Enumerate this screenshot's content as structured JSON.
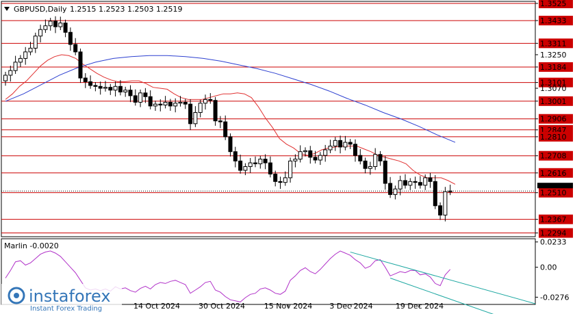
{
  "header": {
    "symbol": "GBPUSD,Daily",
    "ohlc": "1.2515 1.2523 1.2503 1.2519"
  },
  "indicator": {
    "label": "Marlin -0.0020"
  },
  "watermark": {
    "brand": "instaforex",
    "tagline": "Instant Forex Trading"
  },
  "colors": {
    "resistance": "#cc0000",
    "ma_fast": "#e03030",
    "ma_slow": "#2c3fd0",
    "osc": "#b030c8",
    "channel": "#1aa6a0",
    "price_badge": "#000000"
  },
  "chart_data": [
    {
      "type": "candlestick",
      "title": "",
      "y_ticks": [
        "1.3525",
        "1.3433",
        "1.3311",
        "1.3250",
        "1.3184",
        "1.3101",
        "1.3070",
        "1.3001",
        "1.2906",
        "1.2847",
        "1.2810",
        "1.2708",
        "1.2616",
        "1.2510",
        "1.2367",
        "1.2294"
      ],
      "x_ticks": [
        "14 Oct 2024",
        "30 Oct 2024",
        "15 Nov 2024",
        "3 Dec 2024",
        "19 Dec 2024"
      ],
      "ylim": [
        1.2285,
        1.3525
      ],
      "horizontal_levels": [
        1.3525,
        1.3433,
        1.3311,
        1.3184,
        1.3101,
        1.3001,
        1.2906,
        1.2847,
        1.281,
        1.2708,
        1.2616,
        1.251,
        1.2367,
        1.2294
      ],
      "current_price": 1.2519,
      "closes": [
        1.314,
        1.3165,
        1.321,
        1.323,
        1.3265,
        1.3285,
        1.335,
        1.3385,
        1.3405,
        1.343,
        1.34,
        1.342,
        1.337,
        1.3305,
        1.3265,
        1.3125,
        1.3105,
        1.3085,
        1.308,
        1.307,
        1.3075,
        1.306,
        1.308,
        1.305,
        1.306,
        1.303,
        1.2995,
        1.3045,
        1.3025,
        1.2975,
        1.2985,
        1.298,
        1.2995,
        1.2975,
        1.299,
        1.2995,
        1.2985,
        1.288,
        1.294,
        1.299,
        1.301,
        1.3005,
        1.2895,
        1.289,
        1.281,
        1.273,
        1.268,
        1.263,
        1.265,
        1.267,
        1.2665,
        1.269,
        1.267,
        1.261,
        1.257,
        1.2565,
        1.259,
        1.268,
        1.269,
        1.273,
        1.2735,
        1.27,
        1.2685,
        1.271,
        1.274,
        1.276,
        1.279,
        1.2755,
        1.278,
        1.277,
        1.271,
        1.268,
        1.264,
        1.265,
        1.2715,
        1.268,
        1.256,
        1.25,
        1.253,
        1.2575,
        1.255,
        1.257,
        1.2565,
        1.255,
        1.259,
        1.257,
        1.244,
        1.239,
        1.2515,
        1.2519
      ],
      "series": [
        {
          "name": "",
          "values": [
            1.301,
            1.304,
            1.308,
            1.311,
            1.315,
            1.319,
            1.322,
            1.324,
            1.325,
            1.3245,
            1.323,
            1.32,
            1.3175,
            1.315,
            1.313,
            1.3115,
            1.3105,
            1.3105,
            1.311,
            1.311,
            1.3095,
            1.3075,
            1.307,
            1.3065,
            1.304,
            1.302,
            1.301,
            1.301,
            1.301,
            1.302,
            1.303,
            1.304,
            1.304,
            1.3045,
            1.304,
            1.302,
            1.297,
            1.291,
            1.286,
            1.28,
            1.277,
            1.275,
            1.272,
            1.271,
            1.272,
            1.274,
            1.275,
            1.2755,
            1.276,
            1.276,
            1.276,
            1.2745,
            1.273,
            1.271,
            1.27,
            1.269,
            1.268,
            1.2665,
            1.263,
            1.2605,
            1.259,
            1.259,
            1.259,
            1.2575,
            1.2555
          ]
        },
        {
          "name": "",
          "values": [
            1.3,
            1.304,
            1.309,
            1.314,
            1.318,
            1.321,
            1.323,
            1.324,
            1.3245,
            1.3245,
            1.324,
            1.323,
            1.3215,
            1.3195,
            1.3175,
            1.315,
            1.312,
            1.309,
            1.3055,
            1.3015,
            1.298,
            1.294,
            1.2905,
            1.2865,
            1.282,
            1.278
          ]
        }
      ]
    },
    {
      "type": "line",
      "title": "",
      "name": "Marlin -0.0020",
      "y_ticks": [
        "0.0233",
        "0.00",
        "-0.0276"
      ],
      "x_ticks": [
        "14 Oct 2024",
        "30 Oct 2024",
        "15 Nov 2024",
        "3 Dec 2024",
        "19 Dec 2024"
      ],
      "ylim": [
        -0.033,
        0.025
      ],
      "values": [
        -0.01,
        -0.003,
        0.005,
        0.006,
        0.002,
        0.004,
        0.008,
        0.012,
        0.014,
        0.015,
        0.013,
        0.01,
        0.005,
        0.0,
        -0.005,
        -0.012,
        -0.019,
        -0.021,
        -0.02,
        -0.0215,
        -0.02,
        -0.022,
        -0.018,
        -0.02,
        -0.019,
        -0.0215,
        -0.023,
        -0.0195,
        -0.0175,
        -0.02,
        -0.016,
        -0.014,
        -0.015,
        -0.013,
        -0.012,
        -0.014,
        -0.016,
        -0.024,
        -0.021,
        -0.018,
        -0.014,
        -0.013,
        -0.021,
        -0.023,
        -0.027,
        -0.03,
        -0.031,
        -0.032,
        -0.028,
        -0.025,
        -0.024,
        -0.02,
        -0.019,
        -0.021,
        -0.024,
        -0.025,
        -0.022,
        -0.012,
        -0.008,
        -0.003,
        -0.0005,
        -0.004,
        -0.006,
        -0.002,
        0.003,
        0.008,
        0.012,
        0.015,
        0.013,
        0.011,
        0.007,
        0.004,
        -0.001,
        0.001,
        0.006,
        0.007,
        0.0,
        -0.008,
        -0.006,
        -0.004,
        -0.005,
        -0.003,
        -0.003,
        -0.007,
        -0.006,
        -0.009,
        -0.015,
        -0.017,
        -0.007,
        -0.002
      ],
      "channel_upper": [
        [
          69,
          0.014
        ],
        [
          90,
          -0.013
        ]
      ],
      "channel_lower": [
        [
          77,
          -0.01
        ],
        [
          90,
          -0.031
        ]
      ]
    }
  ]
}
